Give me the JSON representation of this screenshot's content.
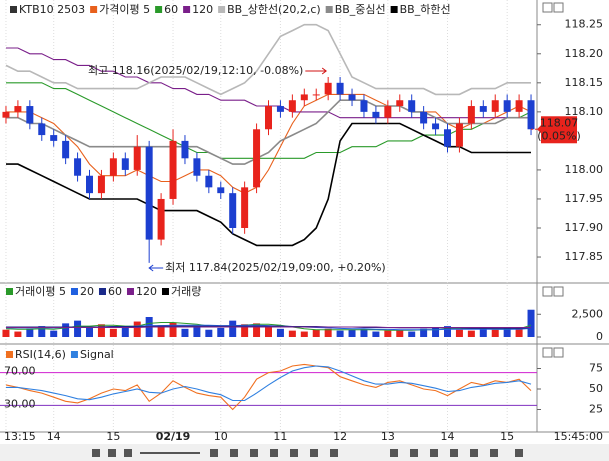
{
  "chart_data": [
    {
      "type": "candlestick",
      "title": "KTB10 2503",
      "open": [
        118.09,
        118.1,
        118.11,
        118.08,
        118.06,
        118.05,
        118.02,
        117.99,
        117.96,
        117.99,
        118.02,
        118.0,
        118.04,
        117.88,
        117.95,
        118.05,
        118.02,
        117.99,
        117.97,
        117.96,
        117.9,
        117.97,
        118.07,
        118.11,
        118.1,
        118.12,
        118.13,
        118.13,
        118.15,
        118.13,
        118.12,
        118.1,
        118.09,
        118.11,
        118.12,
        118.1,
        118.08,
        118.07,
        118.04,
        118.08,
        118.11,
        118.1,
        118.12,
        118.1,
        118.12
      ],
      "high": [
        118.11,
        118.12,
        118.12,
        118.09,
        118.07,
        118.06,
        118.03,
        118.0,
        118.0,
        118.03,
        118.03,
        118.06,
        118.05,
        117.96,
        118.07,
        118.06,
        118.03,
        118.0,
        117.98,
        117.97,
        117.98,
        118.08,
        118.12,
        118.12,
        118.13,
        118.14,
        118.14,
        118.16,
        118.16,
        118.14,
        118.13,
        118.11,
        118.12,
        118.13,
        118.13,
        118.11,
        118.09,
        118.08,
        118.09,
        118.12,
        118.12,
        118.13,
        118.13,
        118.13,
        118.13
      ],
      "low": [
        118.08,
        118.09,
        118.07,
        118.05,
        118.04,
        118.01,
        117.98,
        117.95,
        117.95,
        117.98,
        117.99,
        117.99,
        117.84,
        117.87,
        117.94,
        118.01,
        117.98,
        117.96,
        117.95,
        117.89,
        117.89,
        117.96,
        118.06,
        118.09,
        118.09,
        118.11,
        118.12,
        118.12,
        118.12,
        118.11,
        118.09,
        118.08,
        118.08,
        118.1,
        118.09,
        118.07,
        118.06,
        118.03,
        118.03,
        118.07,
        118.09,
        118.09,
        118.09,
        118.09,
        118.06
      ],
      "close": [
        118.1,
        118.11,
        118.08,
        118.06,
        118.05,
        118.02,
        117.99,
        117.96,
        117.99,
        118.02,
        118.0,
        118.04,
        117.88,
        117.95,
        118.05,
        118.02,
        117.99,
        117.97,
        117.96,
        117.9,
        117.97,
        118.07,
        118.11,
        118.1,
        118.12,
        118.13,
        118.13,
        118.15,
        118.13,
        118.12,
        118.1,
        118.09,
        118.11,
        118.12,
        118.1,
        118.08,
        118.07,
        118.04,
        118.08,
        118.11,
        118.1,
        118.12,
        118.1,
        118.12,
        118.07
      ],
      "up_color": "#e8231c",
      "down_color": "#1c3fd0",
      "series": [
        {
          "name": "가격이평 5",
          "color": "#e8601c",
          "values": [
            118.1,
            118.1,
            118.1,
            118.09,
            118.08,
            118.06,
            118.04,
            118.01,
            117.99,
            117.99,
            117.99,
            118.0,
            117.99,
            117.98,
            117.98,
            117.99,
            118.0,
            118.0,
            117.99,
            117.97,
            117.96,
            117.97,
            118.0,
            118.04,
            118.08,
            118.11,
            118.12,
            118.13,
            118.13,
            118.13,
            118.13,
            118.12,
            118.11,
            118.11,
            118.1,
            118.1,
            118.1,
            118.08,
            118.07,
            118.08,
            118.08,
            118.09,
            118.1,
            118.11,
            118.1
          ]
        },
        {
          "name": "60",
          "color": "#2a9a2a",
          "values": [
            118.15,
            118.15,
            118.15,
            118.15,
            118.14,
            118.14,
            118.13,
            118.12,
            118.11,
            118.1,
            118.09,
            118.08,
            118.07,
            118.06,
            118.05,
            118.04,
            118.03,
            118.03,
            118.02,
            118.02,
            118.02,
            118.02,
            118.02,
            118.02,
            118.02,
            118.02,
            118.03,
            118.03,
            118.03,
            118.04,
            118.04,
            118.04,
            118.05,
            118.05,
            118.05,
            118.06,
            118.06,
            118.06,
            118.07,
            118.07,
            118.08,
            118.08,
            118.09,
            118.09,
            118.1
          ]
        },
        {
          "name": "120",
          "color": "#7a1f8a",
          "values": [
            118.21,
            118.21,
            118.2,
            118.2,
            118.19,
            118.19,
            118.18,
            118.18,
            118.17,
            118.17,
            118.16,
            118.16,
            118.15,
            118.15,
            118.14,
            118.14,
            118.13,
            118.13,
            118.12,
            118.12,
            118.12,
            118.11,
            118.11,
            118.11,
            118.1,
            118.1,
            118.1,
            118.1,
            118.09,
            118.09,
            118.09,
            118.09,
            118.09,
            118.09,
            118.09,
            118.09,
            118.09,
            118.09,
            118.09,
            118.09,
            118.09,
            118.09,
            118.09,
            118.09,
            118.09
          ]
        },
        {
          "name": "BB_상한선(20,2,c)",
          "color": "#b8b8b8",
          "values": [
            118.18,
            118.17,
            118.17,
            118.16,
            118.15,
            118.15,
            118.14,
            118.14,
            118.14,
            118.14,
            118.14,
            118.14,
            118.15,
            118.16,
            118.16,
            118.16,
            118.15,
            118.14,
            118.13,
            118.14,
            118.15,
            118.17,
            118.2,
            118.23,
            118.24,
            118.25,
            118.25,
            118.24,
            118.2,
            118.16,
            118.15,
            118.14,
            118.14,
            118.14,
            118.14,
            118.14,
            118.13,
            118.13,
            118.13,
            118.14,
            118.14,
            118.14,
            118.15,
            118.15,
            118.15
          ]
        },
        {
          "name": "BB_중심선",
          "color": "#8a8a8a",
          "values": [
            118.09,
            118.09,
            118.08,
            118.08,
            118.07,
            118.06,
            118.05,
            118.04,
            118.04,
            118.04,
            118.04,
            118.04,
            118.04,
            118.04,
            118.04,
            118.04,
            118.04,
            118.03,
            118.02,
            118.01,
            118.01,
            118.02,
            118.03,
            118.05,
            118.06,
            118.07,
            118.08,
            118.1,
            118.12,
            118.12,
            118.12,
            118.11,
            118.11,
            118.11,
            118.1,
            118.1,
            118.09,
            118.08,
            118.08,
            118.08,
            118.08,
            118.08,
            118.09,
            118.09,
            118.09
          ]
        },
        {
          "name": "BB_하한선",
          "color": "#000000",
          "values": [
            118.01,
            118.01,
            118.0,
            117.99,
            117.98,
            117.97,
            117.96,
            117.95,
            117.95,
            117.95,
            117.95,
            117.95,
            117.94,
            117.93,
            117.93,
            117.93,
            117.93,
            117.92,
            117.91,
            117.89,
            117.88,
            117.87,
            117.87,
            117.87,
            117.87,
            117.88,
            117.9,
            117.95,
            118.05,
            118.08,
            118.08,
            118.08,
            118.08,
            118.08,
            118.07,
            118.06,
            118.05,
            118.04,
            118.04,
            118.03,
            118.03,
            118.03,
            118.03,
            118.03,
            118.03
          ]
        }
      ],
      "ylim": [
        117.807,
        118.284
      ],
      "yticks": [
        118.25,
        {
          "value": 118.2,
          "label": "118.20"
        },
        118.15,
        {
          "value": 118.1,
          "label": "118.10"
        },
        {
          "value": 118,
          "label": "118.00"
        },
        117.95,
        {
          "value": 117.9,
          "label": "117.90"
        },
        117.85
      ],
      "high_annotation": "최고 118.16(2025/02/19,12:10, -0.08%)",
      "low_annotation": "최저 117.84(2025/02/19,09:00, +0.20%)",
      "last_price": 118.07,
      "last_change": "(0.05%)",
      "last_color": "#e8231c"
    },
    {
      "type": "bar",
      "series": [
        {
          "name": "거래이평 5",
          "type": "line",
          "color": "#2a9a2a",
          "values": [
            900,
            850,
            850,
            900,
            850,
            1000,
            1200,
            1200,
            1300,
            1300,
            1200,
            1200,
            1500,
            1600,
            1600,
            1500,
            1400,
            1200,
            1100,
            1200,
            1300,
            1400,
            1400,
            1300,
            1100,
            900,
            800,
            800,
            800,
            800,
            800,
            800,
            750,
            750,
            750,
            800,
            800,
            900,
            900,
            900,
            900,
            850,
            850,
            900,
            1300
          ]
        },
        {
          "name": "20",
          "type": "line",
          "color": "#2060e0",
          "values": [
            1000,
            1000,
            1000,
            1000,
            1000,
            1050,
            1100,
            1100,
            1100,
            1150,
            1150,
            1200,
            1250,
            1250,
            1300,
            1300,
            1300,
            1300,
            1250,
            1250,
            1300,
            1300,
            1250,
            1200,
            1150,
            1100,
            1050,
            1000,
            950,
            900,
            900,
            850,
            850,
            800,
            800,
            800,
            800,
            850,
            850,
            850,
            850,
            850,
            850,
            850,
            950
          ]
        },
        {
          "name": "60",
          "type": "line",
          "color": "#1a2a8a",
          "values": [
            1100,
            1100,
            1100,
            1100,
            1100,
            1100,
            1100,
            1100,
            1100,
            1150,
            1150,
            1150,
            1150,
            1200,
            1200,
            1200,
            1200,
            1200,
            1200,
            1200,
            1200,
            1200,
            1200,
            1200,
            1150,
            1150,
            1150,
            1100,
            1100,
            1100,
            1050,
            1050,
            1050,
            1000,
            1000,
            1000,
            1000,
            1000,
            1000,
            950,
            950,
            950,
            950,
            950,
            1000
          ]
        },
        {
          "name": "120",
          "type": "line",
          "color": "#7a1f8a",
          "values": [
            1050,
            1050,
            1050,
            1050,
            1050,
            1050,
            1050,
            1050,
            1050,
            1050,
            1050,
            1050,
            1100,
            1100,
            1100,
            1100,
            1100,
            1100,
            1100,
            1100,
            1100,
            1100,
            1100,
            1100,
            1100,
            1100,
            1100,
            1100,
            1100,
            1100,
            1100,
            1100,
            1050,
            1050,
            1050,
            1050,
            1050,
            1050,
            1050,
            1050,
            1050,
            1050,
            1050,
            1050,
            1050
          ]
        },
        {
          "name": "거래량",
          "type": "bar",
          "color": "#000000",
          "values": [
            800,
            600,
            900,
            1200,
            700,
            1500,
            1800,
            1000,
            1400,
            900,
            1100,
            1700,
            2200,
            1300,
            1600,
            900,
            1200,
            800,
            1000,
            1800,
            1400,
            1500,
            1200,
            900,
            700,
            600,
            800,
            900,
            700,
            800,
            900,
            600,
            700,
            800,
            600,
            900,
            1000,
            1200,
            800,
            700,
            900,
            800,
            1000,
            900,
            3000
          ]
        }
      ],
      "ylim": [
        0,
        4400
      ],
      "yticks": [
        {
          "value": 2500,
          "label": "2,500"
        },
        0
      ]
    },
    {
      "type": "line",
      "categories": [
        "13:15",
        null,
        null,
        null,
        "14",
        null,
        null,
        null,
        null,
        "15",
        null,
        null,
        null,
        null,
        "02/19",
        null,
        null,
        null,
        "10",
        null,
        null,
        null,
        null,
        "11",
        null,
        null,
        null,
        null,
        "12",
        null,
        null,
        null,
        "13",
        null,
        null,
        null,
        null,
        "14",
        null,
        null,
        null,
        null,
        "15",
        null,
        null
      ],
      "series": [
        {
          "name": "RSI(14,6)",
          "color": "#f07020",
          "values": [
            55,
            52,
            48,
            45,
            40,
            35,
            33,
            38,
            45,
            50,
            48,
            55,
            35,
            45,
            60,
            52,
            45,
            42,
            40,
            25,
            40,
            62,
            70,
            72,
            78,
            80,
            78,
            76,
            65,
            60,
            55,
            52,
            58,
            60,
            55,
            50,
            48,
            42,
            50,
            58,
            55,
            60,
            58,
            62,
            48
          ]
        },
        {
          "name": "Signal",
          "color": "#3080e0",
          "values": [
            52,
            52,
            50,
            48,
            45,
            42,
            38,
            37,
            40,
            44,
            47,
            50,
            46,
            45,
            50,
            53,
            50,
            46,
            43,
            36,
            36,
            45,
            55,
            64,
            72,
            76,
            78,
            77,
            72,
            66,
            60,
            56,
            56,
            58,
            57,
            54,
            51,
            47,
            48,
            52,
            54,
            57,
            58,
            60,
            56
          ]
        }
      ],
      "levels": [
        {
          "value": 70,
          "label": "70.00",
          "color": "#d020d0"
        },
        {
          "value": 30,
          "label": "30.00",
          "color": "#8030c0"
        }
      ],
      "ylim": [
        0,
        100
      ],
      "yticks": [
        75,
        50,
        25
      ],
      "crosshair_time": "15:45:00"
    }
  ]
}
